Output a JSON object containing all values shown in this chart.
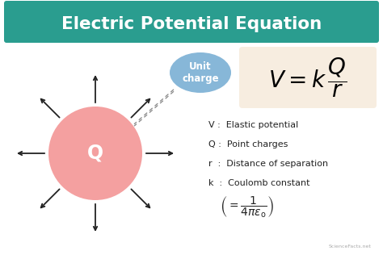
{
  "title": "Electric Potential Equation",
  "title_bg_color": "#2a9d8f",
  "title_text_color": "#ffffff",
  "bg_color": "#ffffff",
  "charge_circle_color": "#f4a0a0",
  "charge_circle_label": "Q",
  "unit_charge_color": "#7aafd4",
  "unit_charge_label": "Unit\ncharge",
  "formula_bg": "#f7ede0",
  "arrow_color": "#222222",
  "legend_lines": [
    "V :  Elastic potential",
    "Q :  Point charges",
    "r  :  Distance of separation",
    "k  :  Coulomb constant"
  ],
  "watermark": "ScienceFacts.net",
  "fig_width": 4.74,
  "fig_height": 3.16,
  "dpi": 100
}
